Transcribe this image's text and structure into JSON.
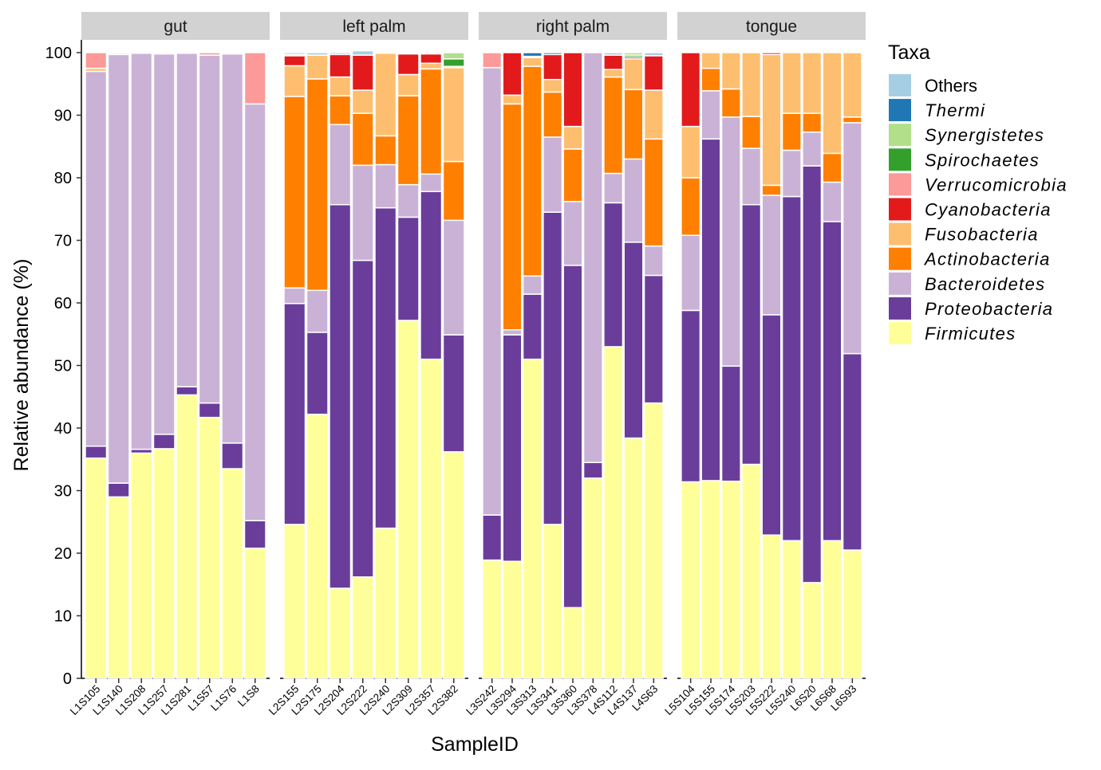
{
  "chart_data": {
    "type": "bar",
    "stacked": true,
    "faceted": true,
    "xlabel": "SampleID",
    "ylabel": "Relative abundance (%)",
    "ylim": [
      0,
      100
    ],
    "yticks": [
      0,
      10,
      20,
      30,
      40,
      50,
      60,
      70,
      80,
      90,
      100
    ],
    "grid": false,
    "legend_position": "right",
    "legend_title": "Taxa",
    "taxa_stack_order": [
      "Firmicutes",
      "Proteobacteria",
      "Bacteroidetes",
      "Actinobacteria",
      "Fusobacteria",
      "Cyanobacteria",
      "Verrucomicrobia",
      "Spirochaetes",
      "Synergistetes",
      "Thermi",
      "Others"
    ],
    "legend_order": [
      "Others",
      "Thermi",
      "Synergistetes",
      "Spirochaetes",
      "Verrucomicrobia",
      "Cyanobacteria",
      "Fusobacteria",
      "Actinobacteria",
      "Bacteroidetes",
      "Proteobacteria",
      "Firmicutes"
    ],
    "legend_italic": {
      "Others": false,
      "Thermi": true,
      "Synergistetes": true,
      "Spirochaetes": true,
      "Verrucomicrobia": true,
      "Cyanobacteria": true,
      "Fusobacteria": true,
      "Actinobacteria": true,
      "Bacteroidetes": true,
      "Proteobacteria": true,
      "Firmicutes": true
    },
    "colors": {
      "Others": "#a6cee3",
      "Thermi": "#1f78b4",
      "Synergistetes": "#b2df8a",
      "Spirochaetes": "#33a02c",
      "Verrucomicrobia": "#fb9a99",
      "Cyanobacteria": "#e31a1c",
      "Fusobacteria": "#fdbf6f",
      "Actinobacteria": "#ff7f00",
      "Bacteroidetes": "#cab2d6",
      "Proteobacteria": "#6a3d9a",
      "Firmicutes": "#ffff99"
    },
    "facets": [
      {
        "name": "gut",
        "samples": [
          {
            "id": "L1S105",
            "values": {
              "Firmicutes": 35.2,
              "Proteobacteria": 1.9,
              "Bacteroidetes": 59.9,
              "Actinobacteria": 0,
              "Fusobacteria": 0.5,
              "Cyanobacteria": 0,
              "Verrucomicrobia": 2.5,
              "Spirochaetes": 0,
              "Synergistetes": 0,
              "Thermi": 0,
              "Others": 0
            }
          },
          {
            "id": "L1S140",
            "values": {
              "Firmicutes": 29.0,
              "Proteobacteria": 2.2,
              "Bacteroidetes": 68.5,
              "Actinobacteria": 0.2,
              "Fusobacteria": 0,
              "Cyanobacteria": 0,
              "Verrucomicrobia": 0.1,
              "Spirochaetes": 0,
              "Synergistetes": 0,
              "Thermi": 0,
              "Others": 0
            }
          },
          {
            "id": "L1S208",
            "values": {
              "Firmicutes": 36.0,
              "Proteobacteria": 0.6,
              "Bacteroidetes": 63.3,
              "Actinobacteria": 0,
              "Fusobacteria": 0,
              "Cyanobacteria": 0,
              "Verrucomicrobia": 0.1,
              "Spirochaetes": 0,
              "Synergistetes": 0,
              "Thermi": 0,
              "Others": 0
            }
          },
          {
            "id": "L1S257",
            "values": {
              "Firmicutes": 36.7,
              "Proteobacteria": 2.3,
              "Bacteroidetes": 60.8,
              "Actinobacteria": 0,
              "Fusobacteria": 0,
              "Cyanobacteria": 0,
              "Verrucomicrobia": 0.2,
              "Spirochaetes": 0,
              "Synergistetes": 0,
              "Thermi": 0,
              "Others": 0
            }
          },
          {
            "id": "L1S281",
            "values": {
              "Firmicutes": 45.3,
              "Proteobacteria": 1.3,
              "Bacteroidetes": 53.3,
              "Actinobacteria": 0,
              "Fusobacteria": 0,
              "Cyanobacteria": 0,
              "Verrucomicrobia": 0.1,
              "Spirochaetes": 0,
              "Synergistetes": 0,
              "Thermi": 0,
              "Others": 0
            }
          },
          {
            "id": "L1S57",
            "values": {
              "Firmicutes": 41.7,
              "Proteobacteria": 2.3,
              "Bacteroidetes": 55.6,
              "Actinobacteria": 0,
              "Fusobacteria": 0,
              "Cyanobacteria": 0,
              "Verrucomicrobia": 0.4,
              "Spirochaetes": 0,
              "Synergistetes": 0,
              "Thermi": 0,
              "Others": 0
            }
          },
          {
            "id": "L1S76",
            "values": {
              "Firmicutes": 33.5,
              "Proteobacteria": 4.1,
              "Bacteroidetes": 62.2,
              "Actinobacteria": 0,
              "Fusobacteria": 0,
              "Cyanobacteria": 0,
              "Verrucomicrobia": 0.2,
              "Spirochaetes": 0,
              "Synergistetes": 0,
              "Thermi": 0,
              "Others": 0
            }
          },
          {
            "id": "L1S8",
            "values": {
              "Firmicutes": 20.8,
              "Proteobacteria": 4.4,
              "Bacteroidetes": 66.6,
              "Actinobacteria": 0,
              "Fusobacteria": 0,
              "Cyanobacteria": 0,
              "Verrucomicrobia": 8.2,
              "Spirochaetes": 0,
              "Synergistetes": 0,
              "Thermi": 0,
              "Others": 0
            }
          }
        ]
      },
      {
        "name": "left palm",
        "samples": [
          {
            "id": "L2S155",
            "values": {
              "Firmicutes": 24.6,
              "Proteobacteria": 35.3,
              "Bacteroidetes": 2.5,
              "Actinobacteria": 30.6,
              "Fusobacteria": 4.9,
              "Cyanobacteria": 1.6,
              "Verrucomicrobia": 0,
              "Spirochaetes": 0,
              "Synergistetes": 0,
              "Thermi": 0.2,
              "Others": 0.3
            }
          },
          {
            "id": "L2S175",
            "values": {
              "Firmicutes": 42.2,
              "Proteobacteria": 13.1,
              "Bacteroidetes": 6.7,
              "Actinobacteria": 33.8,
              "Fusobacteria": 3.8,
              "Cyanobacteria": 0,
              "Verrucomicrobia": 0,
              "Spirochaetes": 0,
              "Synergistetes": 0,
              "Thermi": 0,
              "Others": 0.4
            }
          },
          {
            "id": "L2S204",
            "values": {
              "Firmicutes": 14.4,
              "Proteobacteria": 61.3,
              "Bacteroidetes": 12.8,
              "Actinobacteria": 4.6,
              "Fusobacteria": 3.0,
              "Cyanobacteria": 3.6,
              "Verrucomicrobia": 0,
              "Spirochaetes": 0,
              "Synergistetes": 0,
              "Thermi": 0,
              "Others": 0.3
            }
          },
          {
            "id": "L2S222",
            "values": {
              "Firmicutes": 16.2,
              "Proteobacteria": 50.6,
              "Bacteroidetes": 15.2,
              "Actinobacteria": 8.3,
              "Fusobacteria": 3.7,
              "Cyanobacteria": 5.6,
              "Verrucomicrobia": 0,
              "Spirochaetes": 0,
              "Synergistetes": 0,
              "Thermi": 0,
              "Others": 0.7
            }
          },
          {
            "id": "L2S240",
            "values": {
              "Firmicutes": 24.0,
              "Proteobacteria": 51.2,
              "Bacteroidetes": 6.9,
              "Actinobacteria": 4.6,
              "Fusobacteria": 13.2,
              "Cyanobacteria": 0.1,
              "Verrucomicrobia": 0,
              "Spirochaetes": 0,
              "Synergistetes": 0,
              "Thermi": 0,
              "Others": 0
            }
          },
          {
            "id": "L2S309",
            "values": {
              "Firmicutes": 57.2,
              "Proteobacteria": 16.5,
              "Bacteroidetes": 5.2,
              "Actinobacteria": 14.2,
              "Fusobacteria": 3.4,
              "Cyanobacteria": 3.3,
              "Verrucomicrobia": 0,
              "Spirochaetes": 0,
              "Synergistetes": 0,
              "Thermi": 0,
              "Others": 0.2
            }
          },
          {
            "id": "L2S357",
            "values": {
              "Firmicutes": 51.0,
              "Proteobacteria": 26.8,
              "Bacteroidetes": 2.8,
              "Actinobacteria": 16.8,
              "Fusobacteria": 0.9,
              "Cyanobacteria": 1.5,
              "Verrucomicrobia": 0,
              "Spirochaetes": 0,
              "Synergistetes": 0,
              "Thermi": 0,
              "Others": 0.2
            }
          },
          {
            "id": "L2S382",
            "values": {
              "Firmicutes": 36.2,
              "Proteobacteria": 18.7,
              "Bacteroidetes": 18.3,
              "Actinobacteria": 9.4,
              "Fusobacteria": 15.0,
              "Cyanobacteria": 0.2,
              "Verrucomicrobia": 0,
              "Spirochaetes": 1.2,
              "Synergistetes": 1.0,
              "Thermi": 0,
              "Others": 0
            }
          }
        ]
      },
      {
        "name": "right palm",
        "samples": [
          {
            "id": "L3S242",
            "values": {
              "Firmicutes": 18.9,
              "Proteobacteria": 7.2,
              "Bacteroidetes": 71.5,
              "Actinobacteria": 0,
              "Fusobacteria": 0,
              "Cyanobacteria": 0,
              "Verrucomicrobia": 2.4,
              "Spirochaetes": 0,
              "Synergistetes": 0,
              "Thermi": 0,
              "Others": 0
            }
          },
          {
            "id": "L3S294",
            "values": {
              "Firmicutes": 18.7,
              "Proteobacteria": 36.2,
              "Bacteroidetes": 0.8,
              "Actinobacteria": 36.1,
              "Fusobacteria": 1.4,
              "Cyanobacteria": 6.8,
              "Verrucomicrobia": 0,
              "Spirochaetes": 0,
              "Synergistetes": 0,
              "Thermi": 0,
              "Others": 0
            }
          },
          {
            "id": "L3S313",
            "values": {
              "Firmicutes": 51.0,
              "Proteobacteria": 10.4,
              "Bacteroidetes": 2.9,
              "Actinobacteria": 33.5,
              "Fusobacteria": 1.4,
              "Cyanobacteria": 0.2,
              "Verrucomicrobia": 0,
              "Spirochaetes": 0,
              "Synergistetes": 0,
              "Thermi": 0.6,
              "Others": 0
            }
          },
          {
            "id": "L3S341",
            "values": {
              "Firmicutes": 24.6,
              "Proteobacteria": 49.9,
              "Bacteroidetes": 12.0,
              "Actinobacteria": 7.2,
              "Fusobacteria": 2.0,
              "Cyanobacteria": 4.0,
              "Verrucomicrobia": 0,
              "Spirochaetes": 0,
              "Synergistetes": 0,
              "Thermi": 0.3,
              "Others": 0
            }
          },
          {
            "id": "L3S360",
            "values": {
              "Firmicutes": 11.3,
              "Proteobacteria": 54.7,
              "Bacteroidetes": 10.2,
              "Actinobacteria": 8.4,
              "Fusobacteria": 3.6,
              "Cyanobacteria": 11.8,
              "Verrucomicrobia": 0,
              "Spirochaetes": 0,
              "Synergistetes": 0,
              "Thermi": 0,
              "Others": 0
            }
          },
          {
            "id": "L3S378",
            "values": {
              "Firmicutes": 32.0,
              "Proteobacteria": 2.5,
              "Bacteroidetes": 65.5,
              "Actinobacteria": 0,
              "Fusobacteria": 0,
              "Cyanobacteria": 0,
              "Verrucomicrobia": 0,
              "Spirochaetes": 0,
              "Synergistetes": 0,
              "Thermi": 0,
              "Others": 0
            }
          },
          {
            "id": "L4S112",
            "values": {
              "Firmicutes": 53.0,
              "Proteobacteria": 23.0,
              "Bacteroidetes": 4.7,
              "Actinobacteria": 15.4,
              "Fusobacteria": 1.2,
              "Cyanobacteria": 2.3,
              "Verrucomicrobia": 0,
              "Spirochaetes": 0,
              "Synergistetes": 0,
              "Thermi": 0,
              "Others": 0.4
            }
          },
          {
            "id": "L4S137",
            "values": {
              "Firmicutes": 38.4,
              "Proteobacteria": 31.3,
              "Bacteroidetes": 13.3,
              "Actinobacteria": 11.1,
              "Fusobacteria": 4.9,
              "Cyanobacteria": 0.3,
              "Verrucomicrobia": 0,
              "Spirochaetes": 0.3,
              "Synergistetes": 0.4,
              "Thermi": 0,
              "Others": 0
            }
          },
          {
            "id": "L4S63",
            "values": {
              "Firmicutes": 44.0,
              "Proteobacteria": 20.4,
              "Bacteroidetes": 4.7,
              "Actinobacteria": 17.1,
              "Fusobacteria": 7.8,
              "Cyanobacteria": 5.5,
              "Verrucomicrobia": 0,
              "Spirochaetes": 0,
              "Synergistetes": 0,
              "Thermi": 0,
              "Others": 0.5
            }
          }
        ]
      },
      {
        "name": "tongue",
        "samples": [
          {
            "id": "L5S104",
            "values": {
              "Firmicutes": 31.4,
              "Proteobacteria": 27.4,
              "Bacteroidetes": 12.0,
              "Actinobacteria": 9.2,
              "Fusobacteria": 8.2,
              "Cyanobacteria": 11.8,
              "Verrucomicrobia": 0,
              "Spirochaetes": 0,
              "Synergistetes": 0,
              "Thermi": 0,
              "Others": 0
            }
          },
          {
            "id": "L5S155",
            "values": {
              "Firmicutes": 31.6,
              "Proteobacteria": 54.6,
              "Bacteroidetes": 7.7,
              "Actinobacteria": 3.6,
              "Fusobacteria": 2.5,
              "Cyanobacteria": 0,
              "Verrucomicrobia": 0,
              "Spirochaetes": 0,
              "Synergistetes": 0,
              "Thermi": 0,
              "Others": 0
            }
          },
          {
            "id": "L5S174",
            "values": {
              "Firmicutes": 31.5,
              "Proteobacteria": 18.4,
              "Bacteroidetes": 39.8,
              "Actinobacteria": 4.5,
              "Fusobacteria": 5.8,
              "Cyanobacteria": 0,
              "Verrucomicrobia": 0,
              "Spirochaetes": 0,
              "Synergistetes": 0,
              "Thermi": 0,
              "Others": 0
            }
          },
          {
            "id": "L5S203",
            "values": {
              "Firmicutes": 34.2,
              "Proteobacteria": 41.5,
              "Bacteroidetes": 9.0,
              "Actinobacteria": 5.1,
              "Fusobacteria": 10.2,
              "Cyanobacteria": 0,
              "Verrucomicrobia": 0,
              "Spirochaetes": 0,
              "Synergistetes": 0,
              "Thermi": 0,
              "Others": 0
            }
          },
          {
            "id": "L5S222",
            "values": {
              "Firmicutes": 22.9,
              "Proteobacteria": 35.2,
              "Bacteroidetes": 19.1,
              "Actinobacteria": 1.6,
              "Fusobacteria": 20.9,
              "Cyanobacteria": 0.3,
              "Verrucomicrobia": 0,
              "Spirochaetes": 0,
              "Synergistetes": 0,
              "Thermi": 0,
              "Others": 0
            }
          },
          {
            "id": "L5S240",
            "values": {
              "Firmicutes": 22.0,
              "Proteobacteria": 55.0,
              "Bacteroidetes": 7.4,
              "Actinobacteria": 5.9,
              "Fusobacteria": 9.7,
              "Cyanobacteria": 0,
              "Verrucomicrobia": 0,
              "Spirochaetes": 0,
              "Synergistetes": 0,
              "Thermi": 0,
              "Others": 0
            }
          },
          {
            "id": "L6S20",
            "values": {
              "Firmicutes": 15.3,
              "Proteobacteria": 66.6,
              "Bacteroidetes": 5.4,
              "Actinobacteria": 3.0,
              "Fusobacteria": 9.7,
              "Cyanobacteria": 0,
              "Verrucomicrobia": 0,
              "Spirochaetes": 0,
              "Synergistetes": 0,
              "Thermi": 0,
              "Others": 0
            }
          },
          {
            "id": "L6S68",
            "values": {
              "Firmicutes": 22.0,
              "Proteobacteria": 51.0,
              "Bacteroidetes": 6.3,
              "Actinobacteria": 4.6,
              "Fusobacteria": 16.1,
              "Cyanobacteria": 0,
              "Verrucomicrobia": 0,
              "Spirochaetes": 0,
              "Synergistetes": 0,
              "Thermi": 0,
              "Others": 0
            }
          },
          {
            "id": "L6S93",
            "values": {
              "Firmicutes": 20.5,
              "Proteobacteria": 31.4,
              "Bacteroidetes": 36.9,
              "Actinobacteria": 0.9,
              "Fusobacteria": 10.3,
              "Cyanobacteria": 0,
              "Verrucomicrobia": 0,
              "Spirochaetes": 0,
              "Synergistetes": 0,
              "Thermi": 0,
              "Others": 0
            }
          }
        ]
      }
    ]
  }
}
